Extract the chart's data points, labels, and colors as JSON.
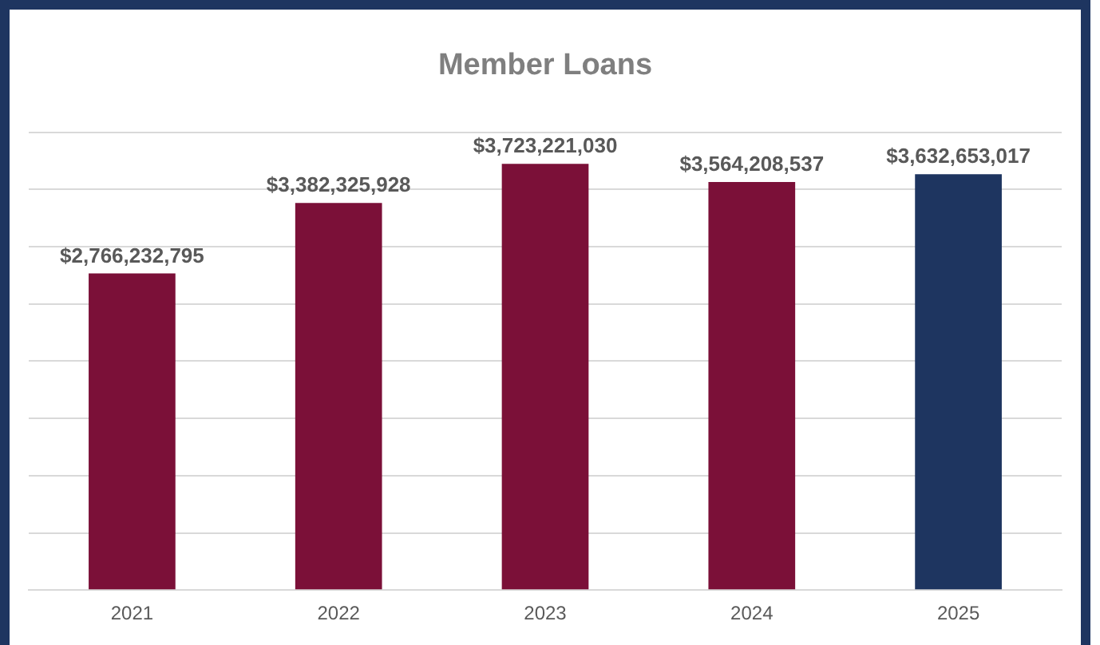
{
  "chart_data": {
    "type": "bar",
    "title": "Member Loans",
    "categories": [
      "2021",
      "2022",
      "2023",
      "2024",
      "2025"
    ],
    "values": [
      2766232795,
      3382325928,
      3723221030,
      3564208537,
      3632653017
    ],
    "colors": [
      "#7b1038",
      "#7b1038",
      "#7b1038",
      "#7b1038",
      "#1e3560"
    ],
    "value_labels": [
      "$2,766,232,795",
      "$3,382,325,928",
      "$3,723,221,030",
      "$3,564,208,537",
      "$3,632,653,017"
    ],
    "ylim": [
      0,
      4000000000
    ],
    "yticks": [
      0,
      500000000,
      1000000000,
      1500000000,
      2000000000,
      2500000000,
      3000000000,
      3500000000,
      4000000000
    ],
    "grid": "y",
    "tick_labels": "x",
    "legend": false
  }
}
